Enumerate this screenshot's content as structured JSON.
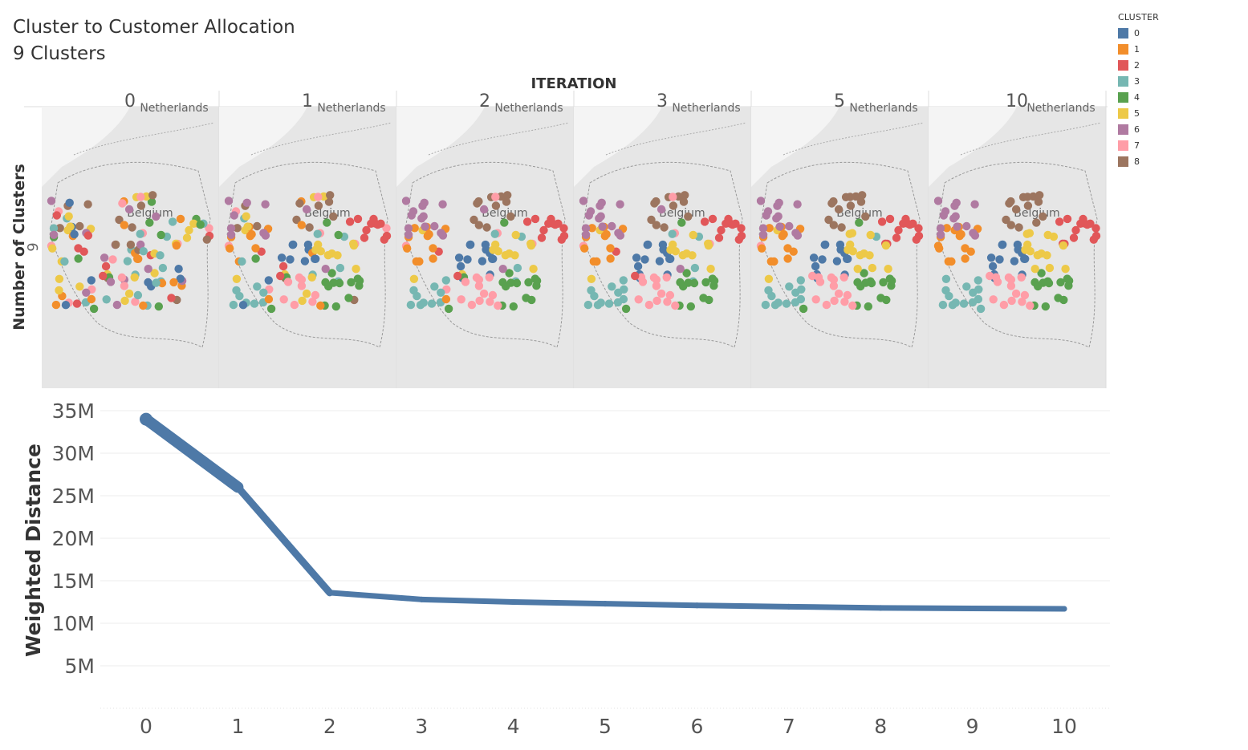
{
  "header": {
    "title": "Cluster to Customer Allocation",
    "subtitle": "9 Clusters"
  },
  "legend": {
    "title": "CLUSTER",
    "items": [
      {
        "label": "0",
        "color": "#4e79a7"
      },
      {
        "label": "1",
        "color": "#f28e2b"
      },
      {
        "label": "2",
        "color": "#e15759"
      },
      {
        "label": "3",
        "color": "#76b7b2"
      },
      {
        "label": "4",
        "color": "#59a14f"
      },
      {
        "label": "5",
        "color": "#edc948"
      },
      {
        "label": "6",
        "color": "#b07aa1"
      },
      {
        "label": "7",
        "color": "#ff9da7"
      },
      {
        "label": "8",
        "color": "#9c755f"
      }
    ]
  },
  "maps": {
    "column_header": "ITERATION",
    "row_header": "Number of Clusters",
    "row_value": "9",
    "iterations": [
      "0",
      "1",
      "2",
      "3",
      "5",
      "10"
    ],
    "labels": {
      "country_top": "Netherlands",
      "country_center": "Belgium"
    }
  },
  "chart_data": {
    "type": "line",
    "x": [
      0,
      1,
      2,
      3,
      4,
      5,
      6,
      7,
      8,
      9,
      10
    ],
    "y": [
      34000000,
      26000000,
      13600000,
      12800000,
      12500000,
      12300000,
      12100000,
      11950000,
      11800000,
      11750000,
      11700000
    ],
    "ylabel": "Weighted Distance",
    "xlabel": "",
    "ylim": [
      0,
      35000000
    ],
    "yticks": [
      "35M",
      "30M",
      "25M",
      "20M",
      "15M",
      "10M",
      "5M"
    ],
    "ytick_values": [
      35000000,
      30000000,
      25000000,
      20000000,
      15000000,
      10000000,
      5000000
    ],
    "xticks": [
      "0",
      "1",
      "2",
      "3",
      "4",
      "5",
      "6",
      "7",
      "8",
      "9",
      "10"
    ],
    "line_color": "#4e79a7",
    "grid": true
  }
}
